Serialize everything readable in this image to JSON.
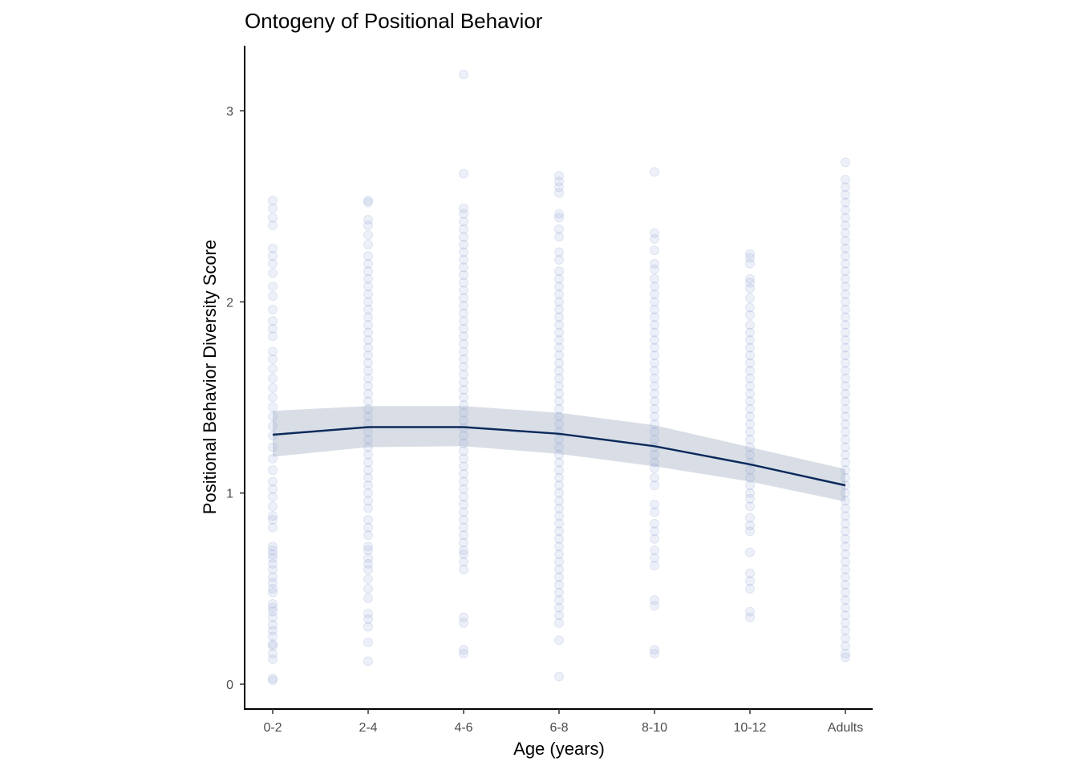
{
  "chart_data": {
    "type": "scatter",
    "title": "Ontogeny of Positional Behavior",
    "xlabel": "Age (years)",
    "ylabel": "Positional Behavior Diversity Score",
    "categories": [
      "0-2",
      "2-4",
      "4-6",
      "6-8",
      "8-10",
      "10-12",
      "Adults"
    ],
    "ylim": [
      -0.13,
      3.34
    ],
    "yticks": [
      0,
      1,
      2,
      3
    ],
    "grid": false,
    "point_color": "#8fa3d1",
    "line_color": "#0c2a5b",
    "band_color": "#c5ccd8",
    "points": [
      {
        "category": "0-2",
        "values": [
          0.02,
          0.03,
          0.13,
          0.16,
          0.2,
          0.21,
          0.25,
          0.28,
          0.31,
          0.35,
          0.38,
          0.4,
          0.42,
          0.48,
          0.5,
          0.53,
          0.56,
          0.6,
          0.63,
          0.66,
          0.68,
          0.7,
          0.72,
          0.82,
          0.86,
          0.88,
          0.93,
          0.98,
          1.02,
          1.06,
          1.12,
          1.18,
          1.24,
          1.3,
          1.35,
          1.4,
          1.45,
          1.5,
          1.55,
          1.6,
          1.65,
          1.7,
          1.74,
          1.82,
          1.86,
          1.9,
          1.96,
          2.03,
          2.08,
          2.15,
          2.2,
          2.24,
          2.28,
          2.4,
          2.44,
          2.49,
          2.53
        ]
      },
      {
        "category": "2-4",
        "values": [
          0.12,
          0.22,
          0.3,
          0.34,
          0.37,
          0.45,
          0.5,
          0.55,
          0.6,
          0.63,
          0.66,
          0.7,
          0.72,
          0.78,
          0.82,
          0.86,
          0.92,
          0.96,
          1.0,
          1.04,
          1.08,
          1.12,
          1.16,
          1.2,
          1.24,
          1.28,
          1.32,
          1.36,
          1.4,
          1.44,
          1.48,
          1.52,
          1.56,
          1.6,
          1.64,
          1.68,
          1.72,
          1.76,
          1.8,
          1.84,
          1.88,
          1.92,
          1.96,
          2.0,
          2.04,
          2.08,
          2.12,
          2.16,
          2.2,
          2.24,
          2.3,
          2.35,
          2.4,
          2.43,
          2.52,
          2.53
        ]
      },
      {
        "category": "4-6",
        "values": [
          0.16,
          0.18,
          0.32,
          0.35,
          0.6,
          0.64,
          0.68,
          0.7,
          0.74,
          0.78,
          0.82,
          0.86,
          0.9,
          0.94,
          0.98,
          1.02,
          1.06,
          1.1,
          1.14,
          1.18,
          1.22,
          1.26,
          1.3,
          1.34,
          1.38,
          1.42,
          1.46,
          1.5,
          1.54,
          1.58,
          1.62,
          1.66,
          1.7,
          1.74,
          1.78,
          1.82,
          1.86,
          1.9,
          1.94,
          1.98,
          2.02,
          2.06,
          2.1,
          2.14,
          2.18,
          2.22,
          2.26,
          2.3,
          2.34,
          2.38,
          2.42,
          2.46,
          2.49,
          2.67,
          3.19
        ]
      },
      {
        "category": "6-8",
        "values": [
          0.04,
          0.23,
          0.32,
          0.36,
          0.4,
          0.44,
          0.48,
          0.52,
          0.56,
          0.6,
          0.64,
          0.68,
          0.72,
          0.76,
          0.8,
          0.84,
          0.88,
          0.92,
          0.96,
          1.0,
          1.04,
          1.08,
          1.12,
          1.16,
          1.2,
          1.24,
          1.28,
          1.32,
          1.36,
          1.4,
          1.44,
          1.48,
          1.52,
          1.56,
          1.6,
          1.64,
          1.68,
          1.72,
          1.76,
          1.8,
          1.84,
          1.88,
          1.92,
          1.96,
          2.0,
          2.04,
          2.08,
          2.12,
          2.16,
          2.22,
          2.26,
          2.34,
          2.38,
          2.44,
          2.46,
          2.57,
          2.6,
          2.63,
          2.66
        ]
      },
      {
        "category": "8-10",
        "values": [
          0.16,
          0.18,
          0.41,
          0.44,
          0.62,
          0.66,
          0.7,
          0.76,
          0.8,
          0.84,
          0.9,
          0.94,
          1.04,
          1.08,
          1.13,
          1.16,
          1.2,
          1.24,
          1.28,
          1.32,
          1.36,
          1.4,
          1.44,
          1.48,
          1.52,
          1.56,
          1.6,
          1.64,
          1.68,
          1.72,
          1.76,
          1.8,
          1.84,
          1.88,
          1.92,
          1.96,
          2.0,
          2.04,
          2.08,
          2.12,
          2.17,
          2.2,
          2.27,
          2.33,
          2.36,
          2.68
        ]
      },
      {
        "category": "10-12",
        "values": [
          0.35,
          0.38,
          0.5,
          0.54,
          0.58,
          0.69,
          0.8,
          0.83,
          0.87,
          0.93,
          0.97,
          1.0,
          1.04,
          1.08,
          1.12,
          1.16,
          1.2,
          1.24,
          1.28,
          1.32,
          1.36,
          1.4,
          1.44,
          1.48,
          1.52,
          1.56,
          1.6,
          1.64,
          1.68,
          1.72,
          1.76,
          1.8,
          1.84,
          1.88,
          1.93,
          1.97,
          2.02,
          2.07,
          2.1,
          2.12,
          2.2,
          2.23,
          2.25
        ]
      },
      {
        "category": "Adults",
        "values": [
          0.14,
          0.16,
          0.2,
          0.24,
          0.28,
          0.32,
          0.36,
          0.4,
          0.44,
          0.48,
          0.52,
          0.56,
          0.6,
          0.64,
          0.68,
          0.72,
          0.76,
          0.8,
          0.84,
          0.88,
          0.92,
          0.96,
          1.0,
          1.04,
          1.08,
          1.12,
          1.16,
          1.2,
          1.24,
          1.28,
          1.32,
          1.36,
          1.4,
          1.44,
          1.48,
          1.52,
          1.56,
          1.6,
          1.64,
          1.68,
          1.72,
          1.76,
          1.8,
          1.84,
          1.88,
          1.92,
          1.96,
          2.0,
          2.04,
          2.08,
          2.12,
          2.16,
          2.2,
          2.24,
          2.28,
          2.32,
          2.36,
          2.4,
          2.44,
          2.48,
          2.52,
          2.56,
          2.6,
          2.64,
          2.73
        ]
      }
    ],
    "trend": {
      "values": [
        1.305,
        1.345,
        1.345,
        1.31,
        1.245,
        1.15,
        1.04
      ],
      "lower": [
        1.19,
        1.24,
        1.245,
        1.205,
        1.14,
        1.06,
        0.955
      ],
      "upper": [
        1.43,
        1.455,
        1.455,
        1.42,
        1.355,
        1.24,
        1.125
      ]
    }
  }
}
